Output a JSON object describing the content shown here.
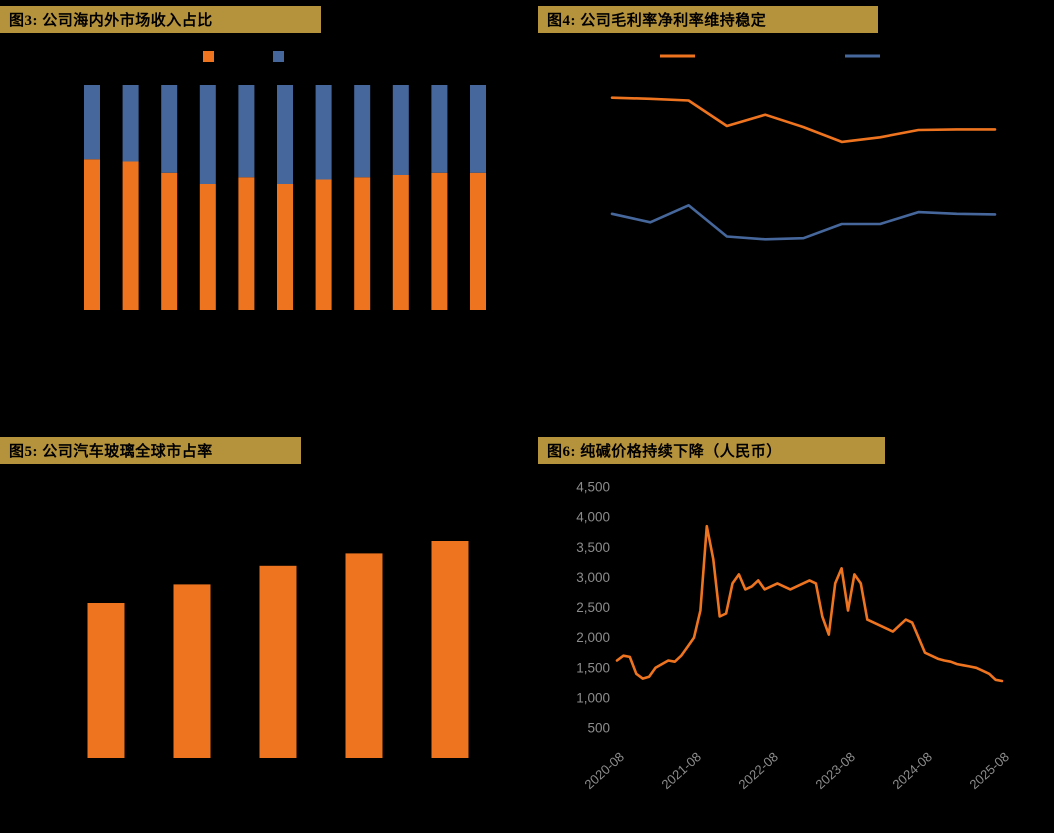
{
  "page": {
    "background": "#000000"
  },
  "colors": {
    "header_gold": "#B5923C",
    "orange": "#EE7420",
    "blue": "#46679B",
    "axis_text": "#8C8C8C"
  },
  "panels": {
    "fig3": {
      "title": "图3:  公司海内外市场收入占比"
    },
    "fig4": {
      "title": "图4:  公司毛利率净利率维持稳定"
    },
    "fig5": {
      "title": "图5:  公司汽车玻璃全球市占率"
    },
    "fig6": {
      "title": "图6:  纯碱价格持续下降（人民币）"
    }
  },
  "chart_data": [
    {
      "id": "fig3",
      "type": "bar",
      "subtype": "stacked-100-percent",
      "title": "公司海内外市场收入占比",
      "n_bars": 11,
      "ylim": [
        0,
        100
      ],
      "legend": [
        {
          "swatch_color_key": "orange"
        },
        {
          "swatch_color_key": "blue"
        }
      ],
      "series": [
        {
          "name": "orange-segment",
          "color_key": "orange",
          "values": [
            67,
            66,
            61,
            56,
            59,
            56,
            58,
            59,
            60,
            61,
            61
          ]
        },
        {
          "name": "blue-segment",
          "color_key": "blue",
          "values": [
            33,
            34,
            39,
            44,
            41,
            44,
            42,
            41,
            40,
            39,
            39
          ]
        }
      ]
    },
    {
      "id": "fig4",
      "type": "line",
      "title": "公司毛利率净利率维持稳定",
      "n_points": 11,
      "ylim": [
        0,
        45
      ],
      "legend": [
        {
          "swatch_color_key": "orange"
        },
        {
          "swatch_color_key": "blue"
        }
      ],
      "series": [
        {
          "name": "upper-line",
          "color_key": "orange",
          "values": [
            41,
            40.8,
            40.5,
            36,
            38,
            35.8,
            33.2,
            34,
            35.3,
            35.4,
            35.4
          ]
        },
        {
          "name": "lower-line",
          "color_key": "blue",
          "values": [
            20.5,
            19,
            22,
            16.5,
            16,
            16.2,
            18.7,
            18.7,
            20.8,
            20.5,
            20.4
          ]
        }
      ]
    },
    {
      "id": "fig5",
      "type": "bar",
      "title": "公司汽车玻璃全球市占率",
      "n_bars": 5,
      "ylim": [
        0,
        40
      ],
      "series": [
        {
          "name": "share-bars",
          "color_key": "orange",
          "values": [
            25,
            28,
            31,
            33,
            35
          ]
        }
      ]
    },
    {
      "id": "fig6",
      "type": "line",
      "title": "纯碱价格持续下降（人民币）",
      "ylim": [
        500,
        4500
      ],
      "y_ticks": [
        "4,500",
        "4,000",
        "3,500",
        "3,000",
        "2,500",
        "2,000",
        "1,500",
        "1,000",
        "500"
      ],
      "y_tick_values": [
        4500,
        4000,
        3500,
        3000,
        2500,
        2000,
        1500,
        1000,
        500
      ],
      "x_ticks": [
        "2020-08",
        "2021-08",
        "2022-08",
        "2023-08",
        "2024-08",
        "2025-08"
      ],
      "series": [
        {
          "name": "soda-ash-price",
          "color_key": "orange",
          "values": [
            1620,
            1700,
            1680,
            1400,
            1320,
            1350,
            1500,
            1560,
            1620,
            1600,
            1700,
            1850,
            2000,
            2450,
            3850,
            3300,
            2350,
            2400,
            2900,
            3050,
            2800,
            2850,
            2950,
            2800,
            2850,
            2900,
            2850,
            2800,
            2850,
            2900,
            2950,
            2900,
            2350,
            2050,
            2900,
            3150,
            2450,
            3050,
            2900,
            2300,
            2250,
            2200,
            2150,
            2100,
            2200,
            2300,
            2250,
            2000,
            1750,
            1700,
            1650,
            1620,
            1600,
            1560,
            1540,
            1520,
            1500,
            1450,
            1400,
            1300,
            1280
          ]
        }
      ]
    }
  ]
}
